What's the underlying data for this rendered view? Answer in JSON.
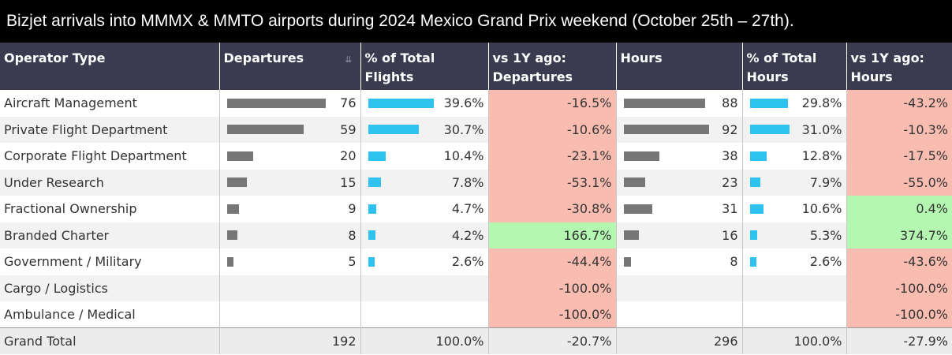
{
  "title": "Bizjet arrivals into MMMX & MMTO airports during 2024 Mexico Grand Prix weekend (October 25th – 27th).",
  "colors": {
    "header_bg": "#3a3b4f",
    "bar_departures": "#777777",
    "bar_share": "#2ec3ee",
    "negative_bg": "#f8bcb0",
    "positive_bg": "#b4f7b0"
  },
  "icons": {
    "sort": "sort-descending-icon"
  },
  "headers": {
    "operator": "Operator Type",
    "departures": "Departures",
    "pct_flights": "% of Total Flights",
    "vs_departures": "vs 1Y ago: Departures",
    "hours": "Hours",
    "pct_hours": "% of Total Hours",
    "vs_hours": "vs 1Y ago: Hours"
  },
  "rows": [
    {
      "operator": "Aircraft Management",
      "departures": "76",
      "pct_flights": "39.6%",
      "vs_departures": "-16.5%",
      "hours": "88",
      "pct_hours": "29.8%",
      "vs_hours": "-43.2%"
    },
    {
      "operator": "Private Flight Department",
      "departures": "59",
      "pct_flights": "30.7%",
      "vs_departures": "-10.6%",
      "hours": "92",
      "pct_hours": "31.0%",
      "vs_hours": "-10.3%"
    },
    {
      "operator": "Corporate Flight Department",
      "departures": "20",
      "pct_flights": "10.4%",
      "vs_departures": "-23.1%",
      "hours": "38",
      "pct_hours": "12.8%",
      "vs_hours": "-17.5%"
    },
    {
      "operator": "Under Research",
      "departures": "15",
      "pct_flights": "7.8%",
      "vs_departures": "-53.1%",
      "hours": "23",
      "pct_hours": "7.9%",
      "vs_hours": "-55.0%"
    },
    {
      "operator": "Fractional Ownership",
      "departures": "9",
      "pct_flights": "4.7%",
      "vs_departures": "-30.8%",
      "hours": "31",
      "pct_hours": "10.6%",
      "vs_hours": "0.4%"
    },
    {
      "operator": "Branded Charter",
      "departures": "8",
      "pct_flights": "4.2%",
      "vs_departures": "166.7%",
      "hours": "16",
      "pct_hours": "5.3%",
      "vs_hours": "374.7%"
    },
    {
      "operator": "Government / Military",
      "departures": "5",
      "pct_flights": "2.6%",
      "vs_departures": "-44.4%",
      "hours": "8",
      "pct_hours": "2.6%",
      "vs_hours": "-43.6%"
    },
    {
      "operator": "Cargo / Logistics",
      "departures": "",
      "pct_flights": "",
      "vs_departures": "-100.0%",
      "hours": "",
      "pct_hours": "",
      "vs_hours": "-100.0%"
    },
    {
      "operator": "Ambulance / Medical",
      "departures": "",
      "pct_flights": "",
      "vs_departures": "-100.0%",
      "hours": "",
      "pct_hours": "",
      "vs_hours": "-100.0%"
    }
  ],
  "total": {
    "operator": "Grand Total",
    "departures": "192",
    "pct_flights": "100.0%",
    "vs_departures": "-20.7%",
    "hours": "296",
    "pct_hours": "100.0%",
    "vs_hours": "-27.9%"
  },
  "chart_data": {
    "type": "table",
    "title": "Bizjet arrivals into MMMX & MMTO airports during 2024 Mexico Grand Prix weekend (October 25th – 27th).",
    "columns": [
      "Operator Type",
      "Departures",
      "% of Total Flights",
      "vs 1Y ago: Departures",
      "Hours",
      "% of Total Hours",
      "vs 1Y ago: Hours"
    ],
    "categories": [
      "Aircraft Management",
      "Private Flight Department",
      "Corporate Flight Department",
      "Under Research",
      "Fractional Ownership",
      "Branded Charter",
      "Government / Military",
      "Cargo / Logistics",
      "Ambulance / Medical"
    ],
    "departures": [
      76,
      59,
      20,
      15,
      9,
      8,
      5,
      null,
      null
    ],
    "pct_total_flights": [
      39.6,
      30.7,
      10.4,
      7.8,
      4.7,
      4.2,
      2.6,
      null,
      null
    ],
    "vs_1y_departures": [
      -16.5,
      -10.6,
      -23.1,
      -53.1,
      -30.8,
      166.7,
      -44.4,
      -100.0,
      -100.0
    ],
    "hours": [
      88,
      92,
      38,
      23,
      31,
      16,
      8,
      null,
      null
    ],
    "pct_total_hours": [
      29.8,
      31.0,
      12.8,
      7.9,
      10.6,
      5.3,
      2.6,
      null,
      null
    ],
    "vs_1y_hours": [
      -43.2,
      -10.3,
      -17.5,
      -55.0,
      0.4,
      374.7,
      -43.6,
      -100.0,
      -100.0
    ],
    "bar_scale": {
      "departures_max": 76,
      "hours_max": 92,
      "pct_flights_max": 39.6,
      "pct_hours_max": 31.0
    }
  }
}
